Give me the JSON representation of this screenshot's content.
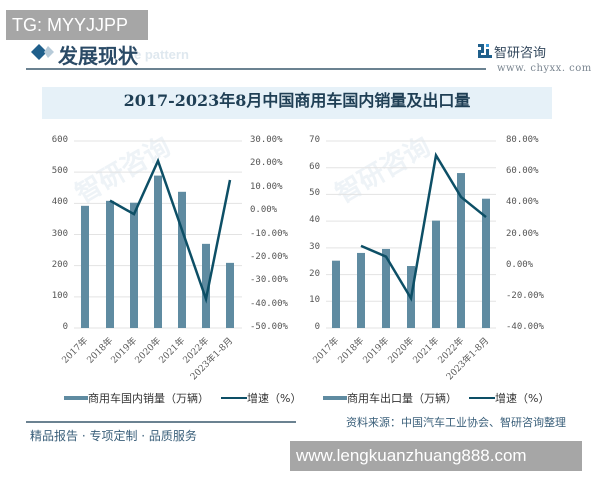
{
  "overlay": {
    "tg_label": "TG: MYYJJPP",
    "url_banner": "www.lengkuanzhuang888.com"
  },
  "header": {
    "title": "发展现状",
    "ghost_text": "e pattern",
    "logo_name": "智研咨询",
    "logo_url": "www. chyxx. com"
  },
  "chart_title": "2017-2023年8月中国商用车国内销量及出口量",
  "footer": {
    "tagline": "精品报告 · 专项定制 · 品质服务",
    "source": "资料来源：中国汽车工业协会、智研咨询整理",
    "watermark": "智研咨询"
  },
  "colors": {
    "bar": "#5f8ba1",
    "line": "#0d4f66",
    "accent": "#1f5f8b",
    "grid": "#e3e3e3"
  },
  "left_axis": {
    "y_ticks": [
      "600",
      "500",
      "400",
      "300",
      "200",
      "100",
      "0"
    ],
    "y2_ticks": [
      "30.00%",
      "20.00%",
      "10.00%",
      "0.00%",
      "-10.00%",
      "-20.00%",
      "-30.00%",
      "-40.00%",
      "-50.00%"
    ]
  },
  "right_axis": {
    "y_ticks": [
      "70",
      "60",
      "50",
      "40",
      "30",
      "20",
      "10",
      "0"
    ],
    "y2_ticks": [
      "80.00%",
      "60.00%",
      "40.00%",
      "20.00%",
      "0.00%",
      "-20.00%",
      "-40.00%"
    ]
  },
  "categories": [
    "2017年",
    "2018年",
    "2019年",
    "2020年",
    "2021年",
    "2022年",
    "2023年1-8月"
  ],
  "legend_left": {
    "bar": "商用车国内销量（万辆）",
    "line": "增速（%）"
  },
  "legend_right": {
    "bar": "商用车出口量（万辆）",
    "line": "增速（%）"
  },
  "chart_data": [
    {
      "type": "bar",
      "title": "商用车国内销量",
      "categories": [
        "2017年",
        "2018年",
        "2019年",
        "2020年",
        "2021年",
        "2022年",
        "2023年1-8月"
      ],
      "series": [
        {
          "name": "商用车国内销量（万辆）",
          "type": "bar",
          "axis": "left",
          "values": [
            392,
            408,
            402,
            489,
            437,
            270,
            209
          ]
        },
        {
          "name": "增速（%）",
          "type": "line",
          "axis": "right",
          "values": [
            null,
            4.5,
            -1.3,
            21.5,
            null,
            -37.6,
            13.3
          ]
        }
      ],
      "ylim": [
        0,
        600
      ],
      "y2lim": [
        -50,
        30
      ],
      "grid": true,
      "legend_position": "bottom"
    },
    {
      "type": "bar",
      "title": "商用车出口量",
      "categories": [
        "2017年",
        "2018年",
        "2019年",
        "2020年",
        "2021年",
        "2022年",
        "2023年1-8月"
      ],
      "series": [
        {
          "name": "商用车出口量（万辆）",
          "type": "bar",
          "axis": "left",
          "values": [
            25.2,
            28.1,
            29.6,
            23.2,
            40.2,
            58.0,
            48.4
          ]
        },
        {
          "name": "增速（%）",
          "type": "line",
          "axis": "right",
          "values": [
            null,
            12.7,
            5.8,
            -21.0,
            70.8,
            44.1,
            31.2
          ]
        }
      ],
      "ylim": [
        0,
        70
      ],
      "y2lim": [
        -40,
        80
      ],
      "grid": true,
      "legend_position": "bottom"
    }
  ]
}
